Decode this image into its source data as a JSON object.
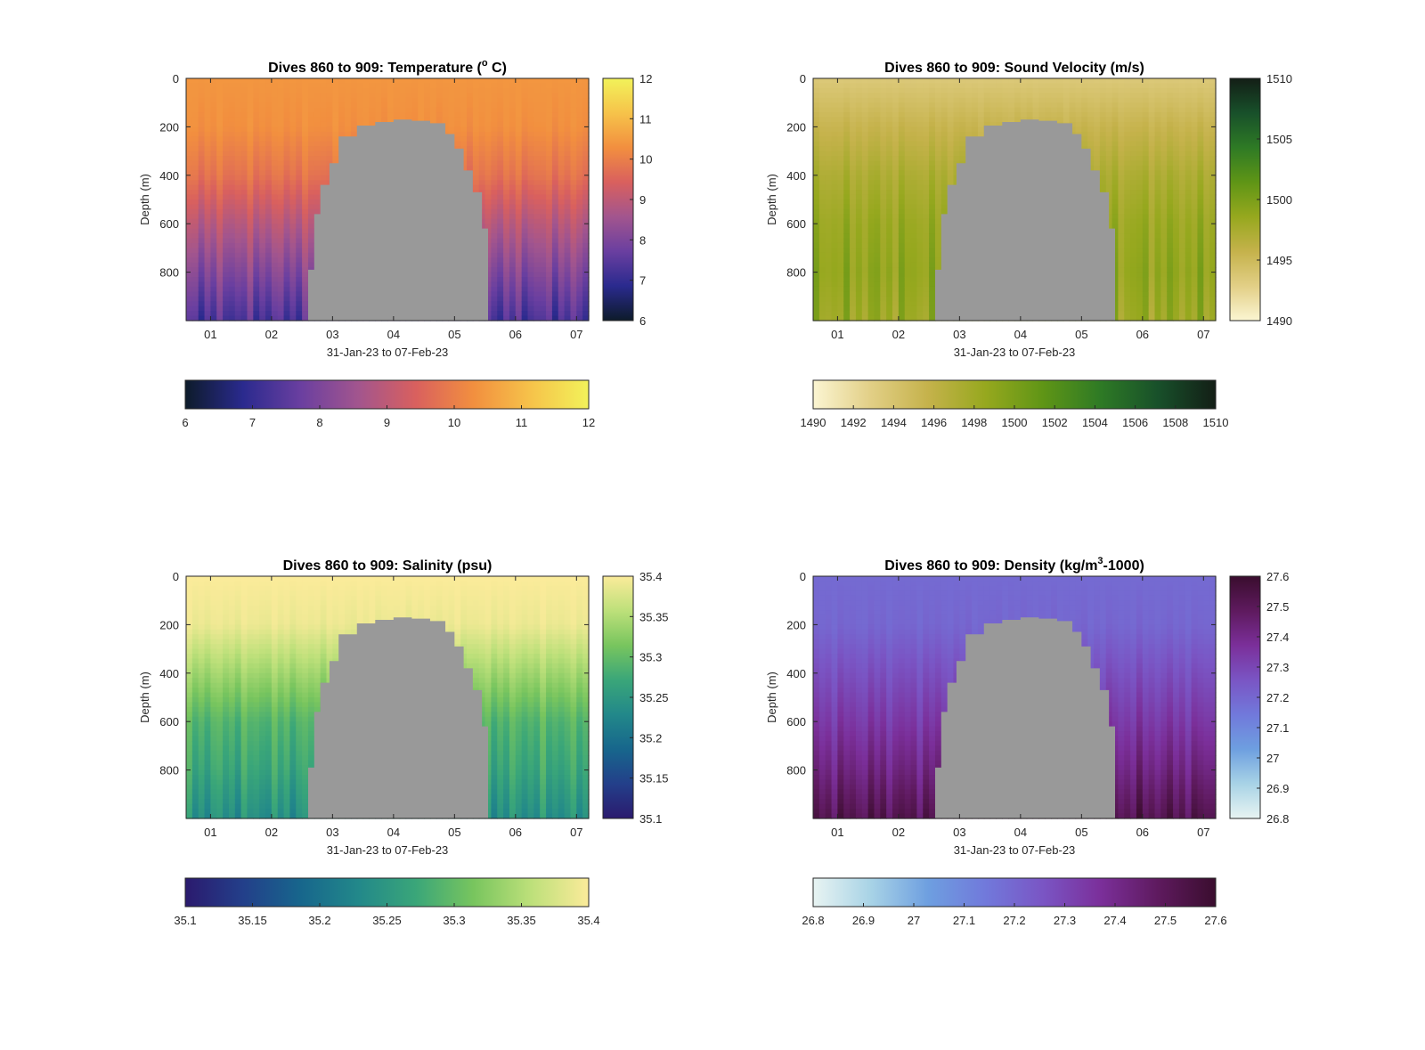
{
  "chart_data": [
    {
      "type": "heatmap",
      "title": "Dives 860 to 909: Temperature (",
      "title_sup": "o",
      "title_suffix": " C)",
      "xlabel": "31-Jan-23 to 07-Feb-23",
      "ylabel": "Depth (m)",
      "x_ticks": [
        "01",
        "02",
        "03",
        "04",
        "05",
        "06",
        "07"
      ],
      "x_range": [
        0.6,
        7.2
      ],
      "y_ticks": [
        0,
        200,
        400,
        600,
        800
      ],
      "ylim": [
        0,
        1000
      ],
      "y_reversed": true,
      "colorbar_ticks": [
        6,
        7,
        8,
        9,
        10,
        11,
        12
      ],
      "horizontal_colorbar_ticks": [
        6,
        7,
        8,
        9,
        10,
        11,
        12
      ],
      "clim": [
        6,
        12
      ],
      "colormap": [
        "#0d1b2a",
        "#2a2a8e",
        "#6a3fa0",
        "#a2558e",
        "#d9605e",
        "#f28f3f",
        "#f6c34a",
        "#f2f25a"
      ],
      "value_profile": {
        "depth": [
          0,
          200,
          400,
          600,
          800,
          1000
        ],
        "value": [
          10.4,
          10.3,
          9.8,
          8.9,
          8.1,
          7.3
        ]
      },
      "missing_color": "#999999",
      "gap_profile": {
        "day": [
          2.6,
          2.7,
          2.8,
          2.95,
          3.1,
          3.4,
          3.7,
          4.0,
          4.3,
          4.6,
          4.85,
          5.0,
          5.15,
          5.3,
          5.45,
          5.55
        ],
        "top_depth": [
          790,
          560,
          440,
          350,
          240,
          195,
          180,
          170,
          175,
          185,
          230,
          290,
          380,
          470,
          620,
          1000
        ]
      }
    },
    {
      "type": "heatmap",
      "title": "Dives 860 to 909: Sound Velocity (m/s)",
      "xlabel": "31-Jan-23 to 07-Feb-23",
      "ylabel": "Depth (m)",
      "x_ticks": [
        "01",
        "02",
        "03",
        "04",
        "05",
        "06",
        "07"
      ],
      "x_range": [
        0.6,
        7.2
      ],
      "y_ticks": [
        0,
        200,
        400,
        600,
        800
      ],
      "ylim": [
        0,
        1000
      ],
      "y_reversed": true,
      "colorbar_ticks": [
        1490,
        1495,
        1500,
        1505,
        1510
      ],
      "horizontal_colorbar_ticks": [
        1490,
        1492,
        1494,
        1496,
        1498,
        1500,
        1502,
        1504,
        1506,
        1508,
        1510
      ],
      "clim": [
        1490,
        1510
      ],
      "colormap": [
        "#fbf5d2",
        "#e2cf86",
        "#c5b24b",
        "#96a81e",
        "#5f9516",
        "#2e7a25",
        "#18502a",
        "#131e16"
      ],
      "value_profile": {
        "depth": [
          0,
          200,
          400,
          600,
          800,
          1000
        ],
        "value": [
          1493.5,
          1495.5,
          1497.2,
          1498.3,
          1498.8,
          1498.2
        ]
      },
      "missing_color": "#999999",
      "gap_profile": {
        "day": [
          2.6,
          2.7,
          2.8,
          2.95,
          3.1,
          3.4,
          3.7,
          4.0,
          4.3,
          4.6,
          4.85,
          5.0,
          5.15,
          5.3,
          5.45,
          5.55
        ],
        "top_depth": [
          790,
          560,
          440,
          350,
          240,
          195,
          180,
          170,
          175,
          185,
          230,
          290,
          380,
          470,
          620,
          1000
        ]
      }
    },
    {
      "type": "heatmap",
      "title": "Dives 860 to 909: Salinity (psu)",
      "xlabel": "31-Jan-23 to 07-Feb-23",
      "ylabel": "Depth (m)",
      "x_ticks": [
        "01",
        "02",
        "03",
        "04",
        "05",
        "06",
        "07"
      ],
      "x_range": [
        0.6,
        7.2
      ],
      "y_ticks": [
        0,
        200,
        400,
        600,
        800
      ],
      "ylim": [
        0,
        1000
      ],
      "y_reversed": true,
      "colorbar_ticks": [
        35.1,
        35.15,
        35.2,
        35.25,
        35.3,
        35.35,
        35.4
      ],
      "horizontal_colorbar_ticks": [
        35.1,
        35.15,
        35.2,
        35.25,
        35.3,
        35.35,
        35.4
      ],
      "clim": [
        35.1,
        35.4
      ],
      "colormap": [
        "#2b1a6e",
        "#233f8a",
        "#17668c",
        "#22888a",
        "#3aa679",
        "#78c55e",
        "#bde07a",
        "#fbeb9a"
      ],
      "value_profile": {
        "depth": [
          0,
          200,
          400,
          600,
          800,
          1000
        ],
        "value": [
          35.4,
          35.39,
          35.34,
          35.29,
          35.27,
          35.24
        ]
      },
      "missing_color": "#999999",
      "gap_profile": {
        "day": [
          2.6,
          2.7,
          2.8,
          2.95,
          3.1,
          3.4,
          3.7,
          4.0,
          4.3,
          4.6,
          4.85,
          5.0,
          5.15,
          5.3,
          5.45,
          5.55
        ],
        "top_depth": [
          790,
          560,
          440,
          350,
          240,
          195,
          180,
          170,
          175,
          185,
          230,
          290,
          380,
          470,
          620,
          1000
        ]
      }
    },
    {
      "type": "heatmap",
      "title": "Dives 860 to 909: Density (kg/m",
      "title_sup": "3",
      "title_suffix": "-1000)",
      "xlabel": "31-Jan-23 to 07-Feb-23",
      "ylabel": "Depth (m)",
      "x_ticks": [
        "01",
        "02",
        "03",
        "04",
        "05",
        "06",
        "07"
      ],
      "x_range": [
        0.6,
        7.2
      ],
      "y_ticks": [
        0,
        200,
        400,
        600,
        800
      ],
      "ylim": [
        0,
        1000
      ],
      "y_reversed": true,
      "colorbar_ticks": [
        26.8,
        26.9,
        27,
        27.1,
        27.2,
        27.3,
        27.4,
        27.5,
        27.6
      ],
      "horizontal_colorbar_ticks": [
        26.8,
        26.9,
        27,
        27.1,
        27.2,
        27.3,
        27.4,
        27.5,
        27.6
      ],
      "clim": [
        26.8,
        27.6
      ],
      "colormap": [
        "#e8f4f2",
        "#a8d3e6",
        "#6e9fe0",
        "#7179db",
        "#7a55c4",
        "#7b2f9a",
        "#5e1a5e",
        "#3a0d2e"
      ],
      "value_profile": {
        "depth": [
          0,
          200,
          400,
          600,
          800,
          1000
        ],
        "value": [
          27.19,
          27.2,
          27.27,
          27.34,
          27.42,
          27.52
        ]
      },
      "missing_color": "#999999",
      "gap_profile": {
        "day": [
          2.6,
          2.7,
          2.8,
          2.95,
          3.1,
          3.4,
          3.7,
          4.0,
          4.3,
          4.6,
          4.85,
          5.0,
          5.15,
          5.3,
          5.45,
          5.55
        ],
        "top_depth": [
          790,
          560,
          440,
          350,
          240,
          195,
          180,
          170,
          175,
          185,
          230,
          290,
          380,
          470,
          620,
          1000
        ]
      }
    }
  ]
}
